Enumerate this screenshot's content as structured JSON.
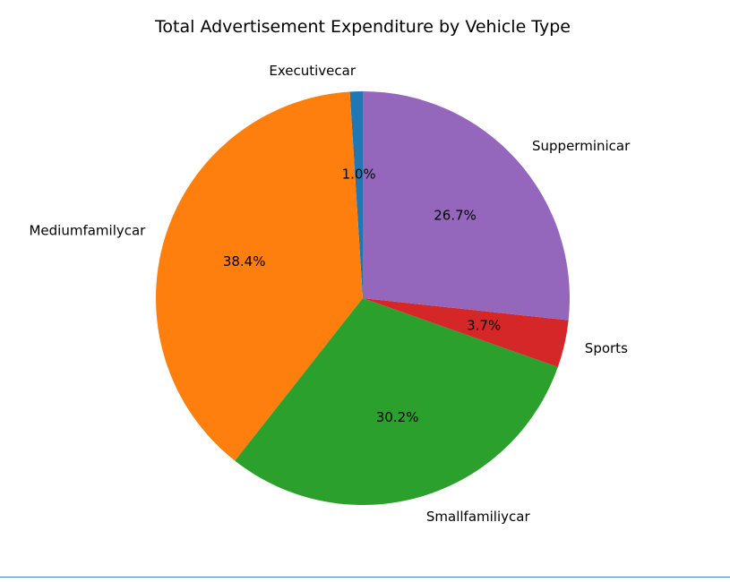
{
  "chart_data": {
    "type": "pie",
    "title": "Total Advertisement Expenditure by Vehicle Type",
    "start_angle_deg": 90,
    "direction": "counterclockwise",
    "slices": [
      {
        "label": "Executivecar",
        "value": 1.0,
        "pct_label": "1.0%",
        "color": "#1f77b4"
      },
      {
        "label": "Mediumfamilycar",
        "value": 38.4,
        "pct_label": "38.4%",
        "color": "#ff7f0e"
      },
      {
        "label": "Smallfamiliycar",
        "value": 30.2,
        "pct_label": "30.2%",
        "color": "#2ca02c"
      },
      {
        "label": "Sports",
        "value": 3.7,
        "pct_label": "3.7%",
        "color": "#d62728"
      },
      {
        "label": "Supperminicar",
        "value": 26.7,
        "pct_label": "26.7%",
        "color": "#9467bd"
      }
    ]
  }
}
